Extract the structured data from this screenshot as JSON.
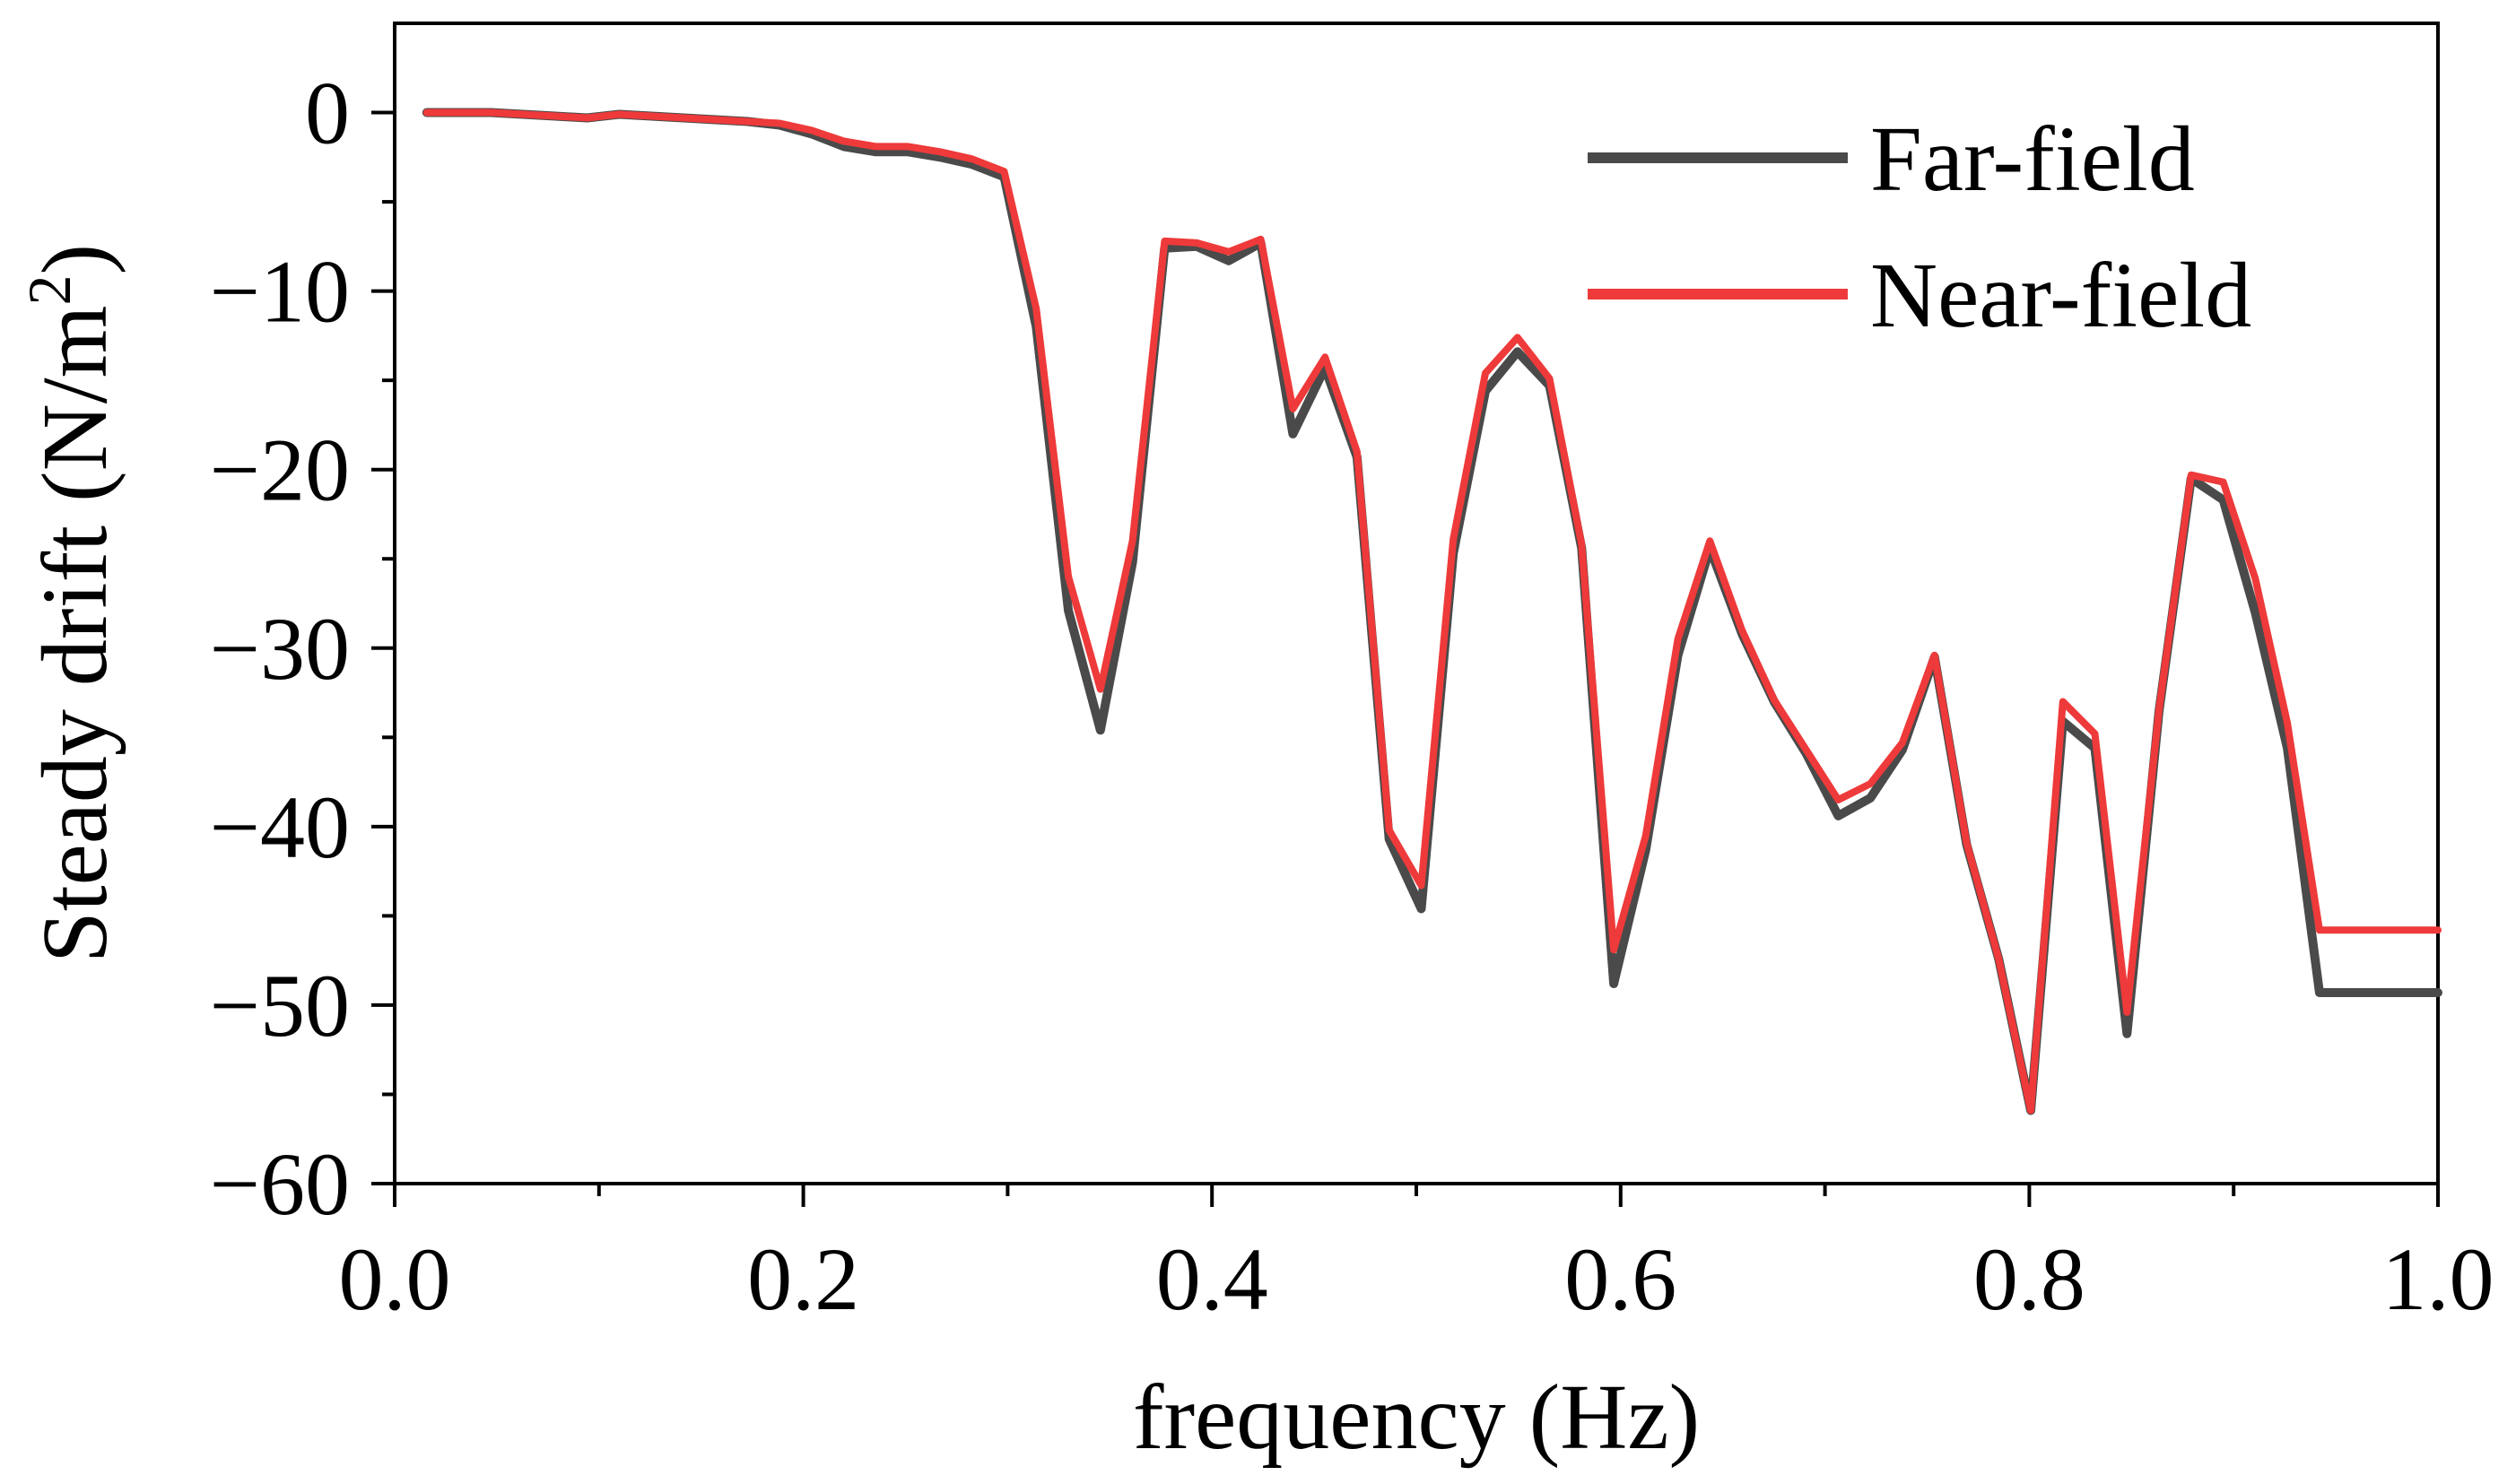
{
  "chart_data": {
    "type": "line",
    "xlabel": "frequency (Hz)",
    "ylabel": "Steady drift (N/m",
    "ylabel_superscript": "2",
    "ylabel_close": ")",
    "xlim": [
      0.0,
      1.0
    ],
    "ylim": [
      -60,
      5
    ],
    "xticks": [
      0.0,
      0.2,
      0.4,
      0.6,
      0.8,
      1.0
    ],
    "xtick_labels": [
      "0.0",
      "0.2",
      "0.4",
      "0.6",
      "0.8",
      "1.0"
    ],
    "yticks": [
      0,
      -10,
      -20,
      -30,
      -40,
      -50,
      -60
    ],
    "ytick_labels": [
      "0",
      "−10",
      "−20",
      "−30",
      "−40",
      "−50",
      "−60"
    ],
    "legend_position": "top-right",
    "grid": false,
    "series": [
      {
        "name": "Far-field",
        "color": "#4a4a4a",
        "x": [
          0.0157,
          0.0314,
          0.0471,
          0.0628,
          0.0785,
          0.0942,
          0.1099,
          0.1256,
          0.1413,
          0.157,
          0.1727,
          0.1884,
          0.2041,
          0.2198,
          0.2355,
          0.2512,
          0.2669,
          0.2826,
          0.2983,
          0.314,
          0.3297,
          0.3454,
          0.3611,
          0.3768,
          0.3925,
          0.4082,
          0.4239,
          0.4396,
          0.4553,
          0.471,
          0.4867,
          0.5024,
          0.5181,
          0.5338,
          0.5495,
          0.5652,
          0.5809,
          0.5966,
          0.6123,
          0.628,
          0.6437,
          0.6594,
          0.6751,
          0.6908,
          0.7065,
          0.7222,
          0.7379,
          0.7536,
          0.7693,
          0.785,
          0.8007,
          0.8164,
          0.8321,
          0.8478,
          0.8635,
          0.8792,
          0.8949,
          0.9106,
          0.9263,
          0.942,
          0.9577,
          0.9734,
          0.9891,
          1.0
        ],
        "y": [
          0.0,
          0.0,
          0.0,
          -0.1,
          -0.2,
          -0.3,
          -0.1,
          -0.2,
          -0.3,
          -0.4,
          -0.5,
          -0.7,
          -1.2,
          -1.9,
          -2.2,
          -2.2,
          -2.5,
          -2.9,
          -3.6,
          -12.0,
          -27.9,
          -34.6,
          -25.2,
          -7.6,
          -7.5,
          -8.3,
          -7.3,
          -18.0,
          -14.3,
          -19.3,
          -40.7,
          -44.6,
          -24.7,
          -15.6,
          -13.4,
          -15.3,
          -24.4,
          -48.8,
          -41.3,
          -30.4,
          -24.4,
          -29.2,
          -33.0,
          -35.9,
          -39.4,
          -38.4,
          -35.7,
          -30.5,
          -41.0,
          -47.4,
          -55.9,
          -34.1,
          -35.6,
          -51.6,
          -33.5,
          -20.5,
          -21.7,
          -28.0,
          -35.6,
          -49.3,
          -49.3,
          -49.3,
          -49.3,
          -49.3
        ]
      },
      {
        "name": "Near-field",
        "color": "#ee3a3a",
        "x": [
          0.0157,
          0.0314,
          0.0471,
          0.0628,
          0.0785,
          0.0942,
          0.1099,
          0.1256,
          0.1413,
          0.157,
          0.1727,
          0.1884,
          0.2041,
          0.2198,
          0.2355,
          0.2512,
          0.2669,
          0.2826,
          0.2983,
          0.314,
          0.3297,
          0.3454,
          0.3611,
          0.3768,
          0.3925,
          0.4082,
          0.4239,
          0.4396,
          0.4553,
          0.471,
          0.4867,
          0.5024,
          0.5181,
          0.5338,
          0.5495,
          0.5652,
          0.5809,
          0.5966,
          0.6123,
          0.628,
          0.6437,
          0.6594,
          0.6751,
          0.6908,
          0.7065,
          0.7222,
          0.7379,
          0.7536,
          0.7693,
          0.785,
          0.8007,
          0.8164,
          0.8321,
          0.8478,
          0.8635,
          0.8792,
          0.8949,
          0.9106,
          0.9263,
          0.942,
          0.9577,
          0.9734,
          0.9891,
          1.0
        ],
        "y": [
          0.0,
          0.0,
          0.0,
          -0.1,
          -0.2,
          -0.3,
          -0.1,
          -0.2,
          -0.3,
          -0.4,
          -0.5,
          -0.6,
          -1.0,
          -1.6,
          -1.9,
          -1.9,
          -2.2,
          -2.6,
          -3.3,
          -11.0,
          -26.0,
          -32.3,
          -24.0,
          -7.2,
          -7.3,
          -7.8,
          -7.1,
          -16.6,
          -13.7,
          -19.0,
          -40.2,
          -43.3,
          -23.9,
          -14.6,
          -12.6,
          -14.9,
          -24.2,
          -46.9,
          -40.5,
          -29.5,
          -24.0,
          -29.0,
          -32.9,
          -35.7,
          -38.5,
          -37.6,
          -35.3,
          -30.4,
          -40.9,
          -47.4,
          -55.9,
          -33.0,
          -34.8,
          -50.4,
          -33.4,
          -20.3,
          -20.7,
          -26.1,
          -34.2,
          -45.8,
          -45.8,
          -45.8,
          -45.8,
          -45.8
        ]
      }
    ]
  }
}
